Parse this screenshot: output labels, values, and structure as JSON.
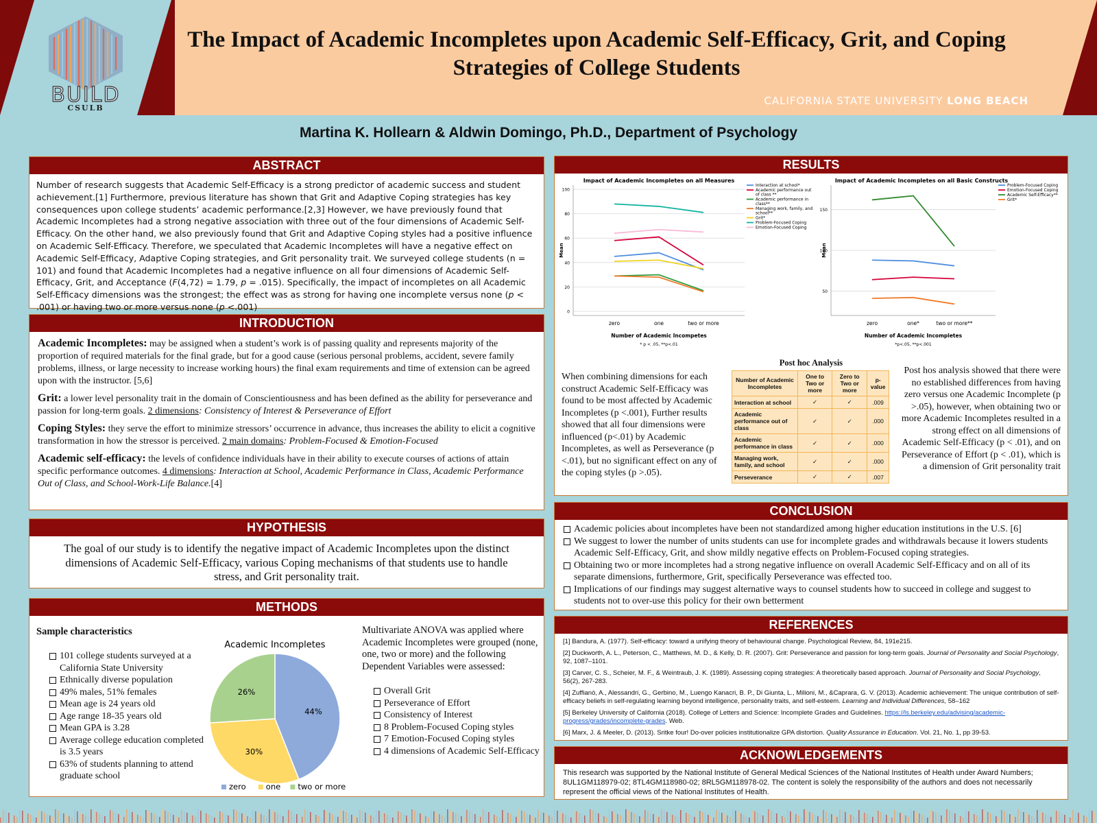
{
  "header": {
    "title_line1": "The Impact of Academic Incompletes upon Academic Self-Efficacy, Grit, and Coping",
    "title_line2": "Strategies of College Students",
    "logo_text": "BUILD",
    "logo_sub": "CSULB",
    "univ_light": "CALIFORNIA STATE UNIVERSITY",
    "univ_bold": "LONG BEACH",
    "authors": "Martina K. Hollearn & Aldwin Domingo, Ph.D., Department of Psychology"
  },
  "abstract": {
    "heading": "ABSTRACT",
    "p1": "Number of research suggests that Academic Self-Efficacy is a strong predictor of academic success and student achievement.[1] Furthermore, previous literature has shown that Grit and Adaptive Coping strategies has key consequences upon college students’ academic performance.[2,3] However, we have previously found that Academic Incompletes had a strong negative association with three out of the four dimensions of Academic Self-Efficacy. On the other hand, we also previously found that Grit and Adaptive Coping styles had a positive influence on Academic Self-Efficacy. Therefore, we speculated that Academic Incompletes will have a negative effect on Academic Self-Efficacy, Adaptive Coping strategies, and Grit personality trait. We surveyed college students (n = 101) and found that Academic Incompletes had a negative influence on all four dimensions of Academic Self-Efficacy, Grit, and Acceptance (",
    "stat_f": "F",
    "p2": "(4,72) = 1.79, ",
    "stat_p1": "p",
    "p3": " = .015). Specifically, the impact of incompletes on all Academic Self-Efficacy dimensions was the strongest; the effect was as strong for having one incomplete versus none (",
    "stat_p2": "p",
    "p4": " < .001) or having two or more versus none (",
    "stat_p3": "p",
    "p5": " <.001)"
  },
  "introduction": {
    "heading": "INTRODUCTION",
    "t1": "Academic Incompletes:",
    "d1": " may be assigned when a student’s work is of passing quality and represents majority of the proportion of required materials for the final grade, but for a good cause (serious personal problems, accident, severe family problems, illness, or large necessity to increase working hours) the final exam requirements and time of extension can be agreed upon with the instructor. [5,6]",
    "t2": "Grit:",
    "d2": " a lower level personality trait in the domain of Conscientiousness and has been defined as the ability for perseverance and passion for long-term goals. ",
    "u2": "2 dimensions",
    "i2": ": Consistency of Interest & Perseverance of Effort",
    "t3": "Coping Styles:",
    "d3": " they serve the effort to minimize stressors’ occurrence in advance, thus increases the ability to elicit a cognitive transformation in how the stressor is perceived.  ",
    "u3": "2 main domains",
    "i3": ": Problem-Focused & Emotion-Focused",
    "t4": "Academic self-efficacy:",
    "d4": " the levels of confidence individuals have in their ability to execute courses of actions of attain specific performance outcomes. ",
    "u4": "4 dimensions",
    "i4": ": Interaction at School, Academic Performance in Class, Academic Performance Out of Class, and School-Work-Life Balance.",
    "r4": "[4]"
  },
  "hypothesis": {
    "heading": "HYPOTHESIS",
    "text": "The goal of our study is to identify the negative impact of Academic Incompletes upon the distinct dimensions of Academic Self-Efficacy, various Coping mechanisms of that students use to handle stress, and Grit personality trait."
  },
  "methods": {
    "heading": "METHODS",
    "sample_title": "Sample characteristics",
    "sample_items": [
      "101 college students surveyed at a California State University",
      "Ethnically diverse population",
      "49% males, 51% females",
      "Mean age is 24 years old",
      "Age range 18-35 years old",
      "Mean GPA is 3.28",
      "Average college education completed is 3.5 years",
      "63% of students planning to attend graduate school"
    ],
    "anova_text": "Multivariate ANOVA was applied where Academic Incompletes were grouped (none, one, two or more) and the following Dependent Variables were assessed:",
    "dv_items": [
      "Overall Grit",
      "Perseverance of Effort",
      "Consistency of Interest",
      "8 Problem-Focused Coping styles",
      "7 Emotion-Focused Coping styles",
      "4 dimensions of Academic Self-Efficacy"
    ]
  },
  "results": {
    "heading": "RESULTS",
    "left_text": "When combining dimensions for each construct Academic Self-Efficacy was found to be most affected by Academic Incompletes (p <.001), Further results showed that all four dimensions were influenced (p<.01) by Academic Incompletes, as well as Perseverance (p <.01), but no significant effect on any of the coping styles (p >.05).",
    "right_text": "Post hos analysis showed that there were no established differences from having zero versus one Academic Incomplete (p >.05), however, when obtaining two or more Academic Incompletes resulted in a strong effect on all dimensions of Academic Self-Efficacy (p < .01), and on Perseverance of Effort (p < .01), which is a dimension of Grit personality trait",
    "table_title": "Post hoc Analysis",
    "table_headers": [
      "Number of Academic Incompletes",
      "One to Two or more",
      "Zero to Two or more",
      "p-value"
    ],
    "table_rows": [
      {
        "label": "Interaction at school",
        "a": "✓",
        "b": "✓",
        "p": ".009"
      },
      {
        "label": "Academic performance out of class",
        "a": "✓",
        "b": "✓",
        "p": ".000"
      },
      {
        "label": "Academic performance in class",
        "a": "✓",
        "b": "✓",
        "p": ".000"
      },
      {
        "label": "Managing work, family, and school",
        "a": "✓",
        "b": "✓",
        "p": ".000"
      },
      {
        "label": "Perseverance",
        "a": "✓",
        "b": "✓",
        "p": ".007"
      }
    ]
  },
  "conclusion": {
    "heading": "CONCLUSION",
    "items": [
      "Academic policies about incompletes have been not standardized among higher education institutions in the U.S. [6]",
      "We suggest to lower the number of units students can use for incomplete grades and withdrawals because it lowers students Academic Self-Efficacy, Grit, and show mildly negative effects on Problem-Focused coping strategies.",
      "Obtaining two or more incompletes had a strong negative influence on overall Academic Self-Efficacy and on all of its separate dimensions, furthermore, Grit, specifically Perseverance was effected too.",
      "Implications of our findings may suggest alternative ways to counsel students how to succeed in college and suggest to students not to over-use this policy for their own betterment"
    ]
  },
  "references": {
    "heading": "REFERENCES",
    "r1": "[1] Bandura, A. (1977). Self-efficacy: toward a unifying theory of behavioural change. Psychological Review, 84, 191e215.",
    "r2a": "[2] Duckworth, A. L., Peterson, C., Matthews, M. D., & Kelly, D. R. (2007). Grit: Perseverance and passion for long-term goals. ",
    "r2i": "Journal of Personality and Social Psychology",
    "r2b": ", 92, 1087–1101.",
    "r3a": " [3] Carver, C. S., Scheier, M. F., & Weintraub, J. K. (1989). Assessing coping strategies: A theoretically based approach. ",
    "r3i": "Journal of Personality and Social Psychology",
    "r3b": ", 56(2), 267-283.",
    "r4a": "[4] Zuffianò, A., Alessandri, G., Gerbino, M., Luengo Kanacri, B. P., Di Giunta, L., Milioni, M., &Caprara, G. V. (2013). Academic achievement: The unique contribution of self-efficacy beliefs in self-regulating learning beyond intelligence, personality traits, and self-esteem. ",
    "r4i": "Learning and Individual Differences,",
    "r4b": " 58–162",
    "r5a": "[5] Berkeley University of California (2018). College of Letters and Science: Incomplete Grades and Guidelines. ",
    "r5link": "https://ls.berkeley.edu/advising/academic-progress/grades/incomplete-grades",
    "r5b": ". Web.",
    "r6a": "[6] Marx, J. & Meeler, D. (2013). Sritke four! Do-over policies institutionalize GPA distortion. ",
    "r6i": "Quality Assurance in Education",
    "r6b": ". Vol. 21, No. 1, pp 39-53."
  },
  "acknowledgements": {
    "heading": "ACKNOWLEDGEMENTS",
    "text": "This research was supported by the National Institute of General Medical Sciences of the National Institutes of Health under Award Numbers; 8UL1GM118979-02; 8TL4GM118980-02; 8RL5GM118978-02. The content is solely the responsibility of the authors and does not necessarily represent the official views of the National Institutes of Health."
  },
  "chart_data": [
    {
      "type": "pie",
      "title": "Academic Incompletes",
      "categories": [
        "zero",
        "one",
        "two or more"
      ],
      "values": [
        44,
        30,
        26
      ],
      "labels": [
        "44%",
        "30%",
        "26%"
      ],
      "colors": [
        "#8eaadb",
        "#ffd966",
        "#a9d18e"
      ],
      "legend": "bottom"
    },
    {
      "type": "line",
      "title": "Impact of Academic Incompletes on all Measures",
      "xlabel": "Number of Academic Incompetes",
      "ylabel": "Mean",
      "note": "* p < .05, **p<.01",
      "categories": [
        "zero",
        "one",
        "two or more"
      ],
      "ylim": [
        0,
        100
      ],
      "yticks": [
        0,
        20,
        40,
        60,
        80,
        100
      ],
      "grid": true,
      "legend": "right",
      "series": [
        {
          "name": "Interaction at school*",
          "values": [
            45,
            48,
            34
          ],
          "color": "#4f8fe0"
        },
        {
          "name": "Academic performance out of class **",
          "values": [
            58,
            61,
            38
          ],
          "color": "#d6003a"
        },
        {
          "name": "Academic performance in class**",
          "values": [
            29,
            30,
            17
          ],
          "color": "#2f9a3f"
        },
        {
          "name": "Managing work, family, and school**",
          "values": [
            29,
            28,
            16
          ],
          "color": "#f07a28"
        },
        {
          "name": "Grit*",
          "values": [
            41,
            42,
            35
          ],
          "color": "#f0d320"
        },
        {
          "name": "Problem-Focused Coping",
          "values": [
            88,
            86,
            81
          ],
          "color": "#12b3a0"
        },
        {
          "name": "Emotion-Focused Coping",
          "values": [
            64,
            67,
            65
          ],
          "color": "#f8bad6"
        }
      ]
    },
    {
      "type": "line",
      "title": "Impact of Academic Incompletes on all Basic Constructs",
      "xlabel": "Number of Academic Incompletes",
      "ylabel": "Mean",
      "note": "*p<.05, **p<.001",
      "categories": [
        "zero",
        "one*",
        "two or more**"
      ],
      "ylim": [
        25,
        175
      ],
      "yticks": [
        50,
        100,
        150
      ],
      "grid": true,
      "legend": "right",
      "series": [
        {
          "name": "Problem-Focused Coping",
          "values": [
            88,
            87,
            81
          ],
          "color": "#4f8fe0"
        },
        {
          "name": "Emotion-Focused Coping",
          "values": [
            64,
            67,
            65
          ],
          "color": "#d6003a"
        },
        {
          "name": "Academic Self-Efficacy**",
          "values": [
            162,
            167,
            105
          ],
          "color": "#2f8a2f"
        },
        {
          "name": "Grit*",
          "values": [
            41,
            42,
            34
          ],
          "color": "#f07a28"
        }
      ]
    }
  ]
}
